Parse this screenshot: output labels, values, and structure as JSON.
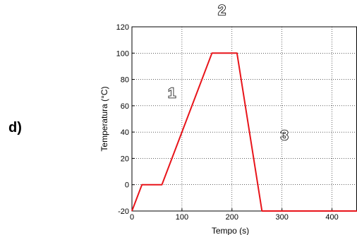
{
  "panel_label": "d)",
  "chart_data": {
    "type": "line",
    "xlabel": "Tempo (s)",
    "ylabel": "Temperatura (°C)",
    "xlim": [
      0,
      450
    ],
    "ylim": [
      -20,
      120
    ],
    "xticks": [
      0,
      100,
      200,
      300,
      400
    ],
    "yticks": [
      -20,
      0,
      20,
      40,
      60,
      80,
      100,
      120
    ],
    "grid": true,
    "line_color": "#e8141a",
    "series": [
      {
        "x": [
          0,
          20,
          60,
          160,
          210,
          260,
          450
        ],
        "y": [
          -20,
          0,
          0,
          100,
          100,
          -20,
          -20
        ]
      }
    ],
    "annotations": [
      {
        "text": "1",
        "x": 80,
        "y": 66
      },
      {
        "text": "2",
        "x": 180,
        "y": 129
      },
      {
        "text": "3",
        "x": 305,
        "y": 34
      }
    ]
  }
}
